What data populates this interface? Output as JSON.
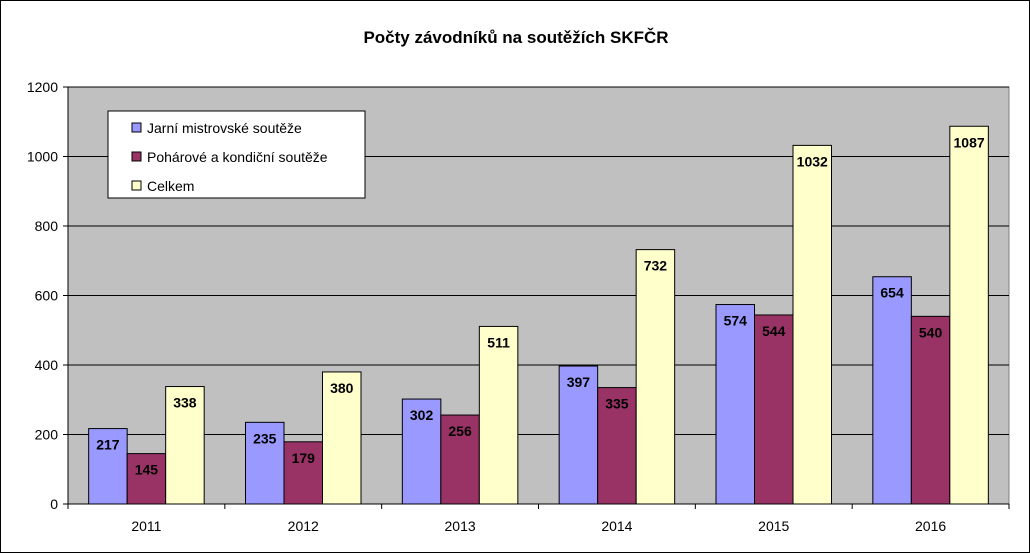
{
  "chart_data": {
    "type": "bar",
    "title": "Počty závodníků na soutěžích SKFČR",
    "xlabel": "",
    "ylabel": "",
    "categories": [
      "2011",
      "2012",
      "2013",
      "2014",
      "2015",
      "2016"
    ],
    "ylim": [
      0,
      1200
    ],
    "yticks": [
      0,
      200,
      400,
      600,
      800,
      1000,
      1200
    ],
    "grid": true,
    "plot_background": "#c0c0c0",
    "legend_position": "top-left",
    "series": [
      {
        "name": "Jarní mistrovské soutěže",
        "color": "#9999ff",
        "values": [
          217,
          235,
          302,
          397,
          574,
          654
        ]
      },
      {
        "name": "Pohárové a kondiční soutěže",
        "color": "#993366",
        "values": [
          145,
          179,
          256,
          335,
          544,
          540
        ]
      },
      {
        "name": "Celkem",
        "color": "#ffffcc",
        "values": [
          338,
          380,
          511,
          732,
          1032,
          1087
        ]
      }
    ],
    "data_labels": true
  }
}
